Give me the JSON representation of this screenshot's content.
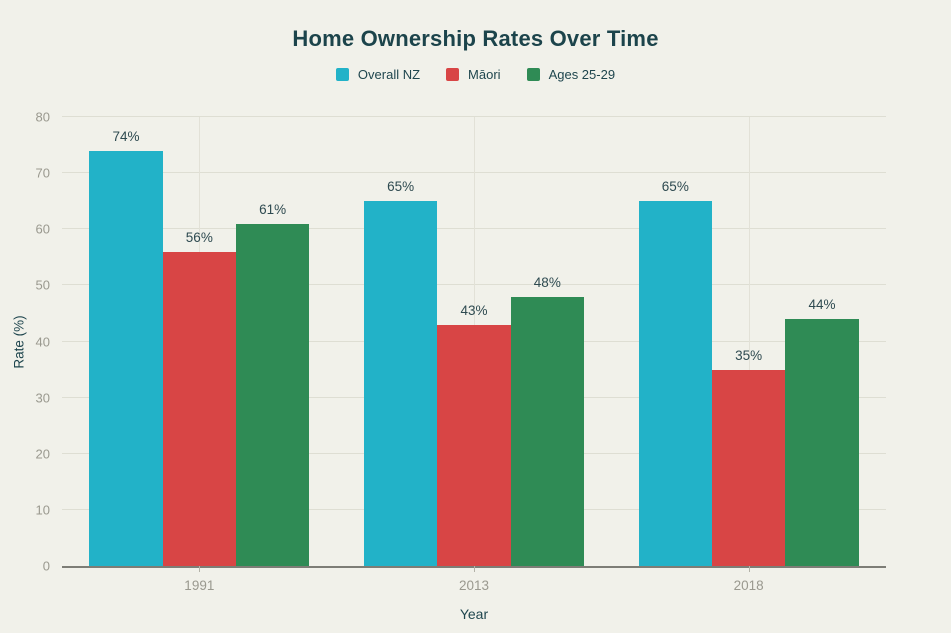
{
  "page": {
    "background_color": "#f1f1ea",
    "title_color": "#1c444b",
    "axis_text_color": "#9a998f"
  },
  "title": "Home Ownership Rates Over Time",
  "legend": {
    "items": [
      {
        "label": "Overall NZ",
        "color": "#22b2c8"
      },
      {
        "label": "Māori",
        "color": "#d84545"
      },
      {
        "label": "Ages 25-29",
        "color": "#2f8b55"
      }
    ]
  },
  "chart_data": {
    "type": "bar",
    "title": "Home Ownership Rates Over Time",
    "categories": [
      "1991",
      "2013",
      "2018"
    ],
    "series": [
      {
        "name": "Overall NZ",
        "color": "#22b2c8",
        "values": [
          74,
          65,
          65
        ]
      },
      {
        "name": "Māori",
        "color": "#d84545",
        "values": [
          56,
          43,
          35
        ]
      },
      {
        "name": "Ages 25-29",
        "color": "#2f8b55",
        "values": [
          61,
          48,
          44
        ]
      }
    ],
    "xlabel": "Year",
    "ylabel": "Rate (%)",
    "ylim": [
      0,
      80
    ],
    "yticks": [
      0,
      10,
      20,
      30,
      40,
      50,
      60,
      70,
      80
    ],
    "grid": true,
    "legend_position": "top",
    "value_label_suffix": "%"
  }
}
